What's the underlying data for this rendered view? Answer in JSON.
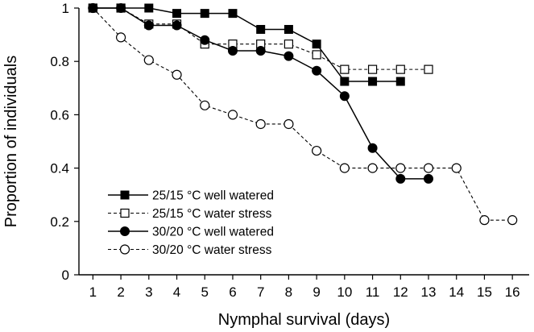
{
  "chart_data": {
    "type": "line",
    "title": "",
    "xlabel": "Nymphal survival (days)",
    "ylabel": "Proportion of individuals",
    "xlim": [
      0.5,
      16.6
    ],
    "ylim": [
      0,
      1
    ],
    "x_ticks": [
      "1",
      "2",
      "3",
      "4",
      "5",
      "6",
      "7",
      "8",
      "9",
      "10",
      "11",
      "12",
      "13",
      "14",
      "15",
      "16"
    ],
    "y_ticks": [
      "0",
      "0.2",
      "0.4",
      "0.6",
      "0.8",
      "1"
    ],
    "grid": false,
    "legend_position": "bottom-left",
    "series": [
      {
        "name": "25/15 °C well watered",
        "marker": "filled-square",
        "line": "solid",
        "x": [
          1,
          2,
          3,
          4,
          5,
          6,
          7,
          8,
          9,
          10,
          11,
          12
        ],
        "y": [
          1.0,
          1.0,
          1.0,
          0.98,
          0.98,
          0.98,
          0.92,
          0.92,
          0.865,
          0.725,
          0.725,
          0.725
        ]
      },
      {
        "name": "25/15 °C water stress",
        "marker": "open-square",
        "line": "dashed",
        "x": [
          1,
          2,
          3,
          4,
          5,
          6,
          7,
          8,
          9,
          10,
          11,
          12,
          13
        ],
        "y": [
          1.0,
          1.0,
          0.94,
          0.94,
          0.865,
          0.865,
          0.865,
          0.865,
          0.825,
          0.77,
          0.77,
          0.77,
          0.77
        ]
      },
      {
        "name": "30/20 °C well watered",
        "marker": "filled-circle",
        "line": "solid",
        "x": [
          1,
          2,
          3,
          4,
          5,
          6,
          7,
          8,
          9,
          10,
          11,
          12,
          13
        ],
        "y": [
          1.0,
          1.0,
          0.935,
          0.935,
          0.88,
          0.84,
          0.84,
          0.82,
          0.765,
          0.67,
          0.475,
          0.36,
          0.36
        ]
      },
      {
        "name": "30/20 °C water stress",
        "marker": "open-circle",
        "line": "dashed",
        "x": [
          1,
          2,
          3,
          4,
          5,
          6,
          7,
          8,
          9,
          10,
          11,
          12,
          13,
          14,
          15,
          16
        ],
        "y": [
          1.0,
          0.89,
          0.805,
          0.75,
          0.635,
          0.6,
          0.565,
          0.565,
          0.465,
          0.4,
          0.4,
          0.4,
          0.4,
          0.4,
          0.205,
          0.205
        ]
      }
    ]
  }
}
